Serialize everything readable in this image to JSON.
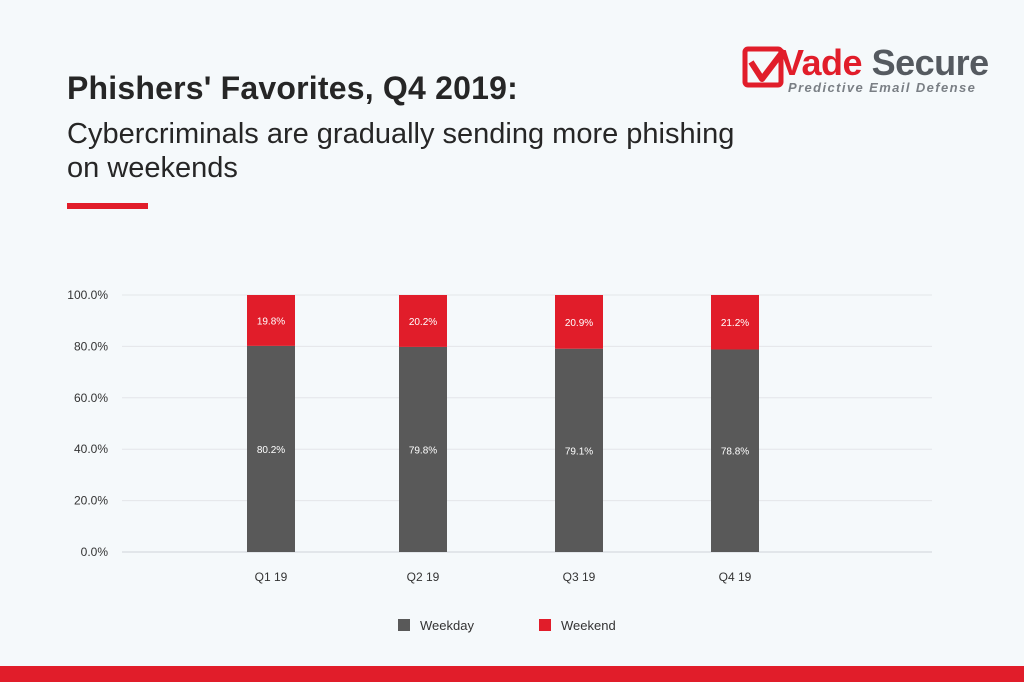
{
  "header": {
    "title": "Phishers' Favorites, Q4 2019:",
    "subtitle": "Cybercriminals are gradually sending more phishing on weekends"
  },
  "logo": {
    "word_part1": "Vade",
    "word_part2": "Secure",
    "tagline": "Predictive Email Defense"
  },
  "colors": {
    "accent": "#e11d2a",
    "weekday": "#595959",
    "weekend": "#e11d2a",
    "text": "#262626"
  },
  "chart_data": {
    "type": "bar",
    "stacked": true,
    "categories": [
      "Q1 19",
      "Q2 19",
      "Q3 19",
      "Q4 19"
    ],
    "series": [
      {
        "name": "Weekday",
        "values": [
          80.2,
          79.8,
          79.1,
          78.8
        ],
        "labels": [
          "80.2%",
          "79.8%",
          "79.1%",
          "78.8%"
        ],
        "color": "#595959"
      },
      {
        "name": "Weekend",
        "values": [
          19.8,
          20.2,
          20.9,
          21.2
        ],
        "labels": [
          "19.8%",
          "20.2%",
          "20.9%",
          "21.2%"
        ],
        "color": "#e11d2a"
      }
    ],
    "y_ticks": [
      "0.0%",
      "20.0%",
      "40.0%",
      "60.0%",
      "80.0%",
      "100.0%"
    ],
    "ylim": [
      0,
      100
    ],
    "grid": true,
    "legend_position": "bottom"
  }
}
